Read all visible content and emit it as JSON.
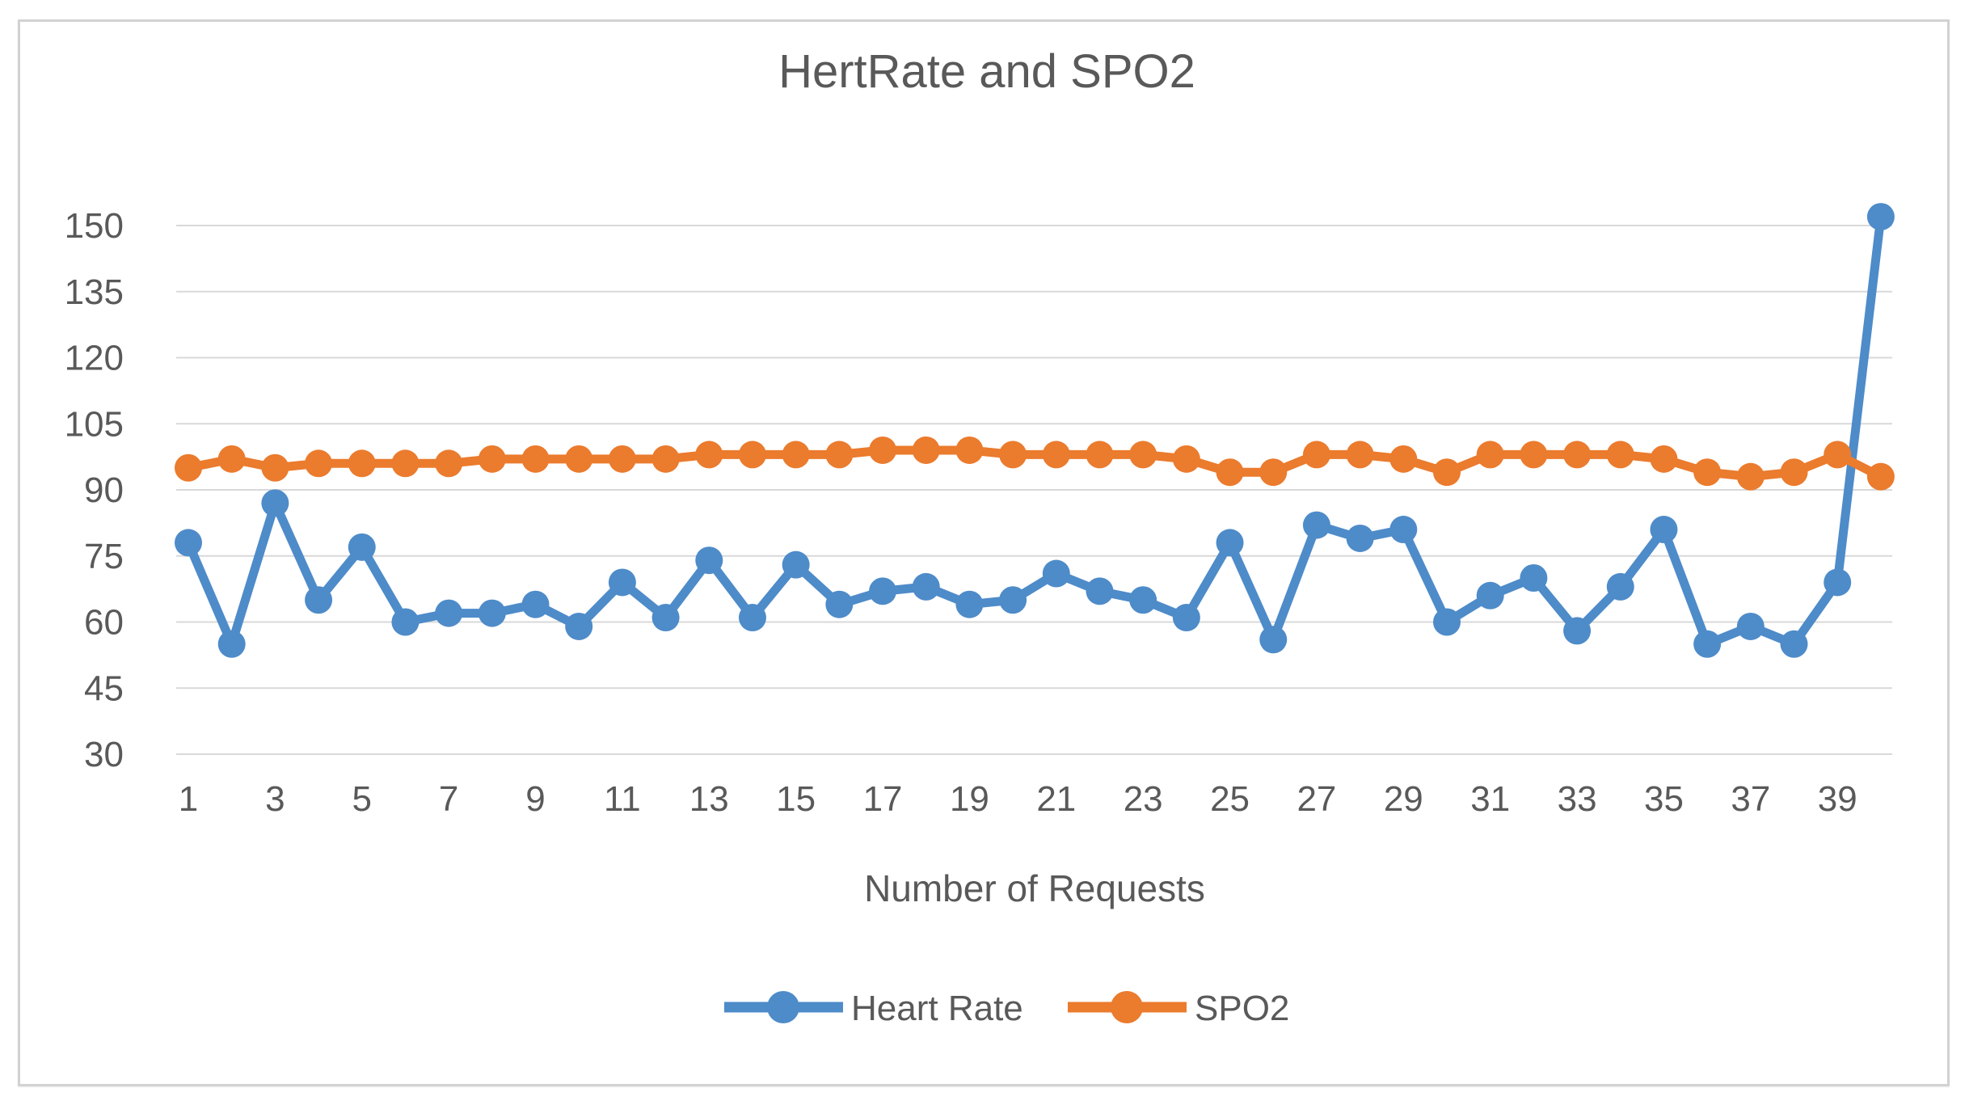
{
  "window": {
    "title": "HertRate and SPO2"
  },
  "colors": {
    "heart_rate": "#4E8BC9",
    "spo2": "#EB7B2D",
    "grid": "#D9D9D9",
    "text": "#595959",
    "frame_border": "#D2D2D2",
    "background": "#FFFFFF"
  },
  "legend": {
    "items": [
      {
        "label": "Heart Rate",
        "color": "#4E8BC9"
      },
      {
        "label": "SPO2",
        "color": "#EB7B2D"
      }
    ]
  },
  "chart_data": {
    "type": "line",
    "title": "HertRate and SPO2",
    "xlabel": "Number of Requests",
    "ylabel": "",
    "grid": true,
    "legend_position": "bottom",
    "ylim": [
      30,
      150
    ],
    "y_ticks": [
      30,
      45,
      60,
      75,
      90,
      105,
      120,
      135,
      150
    ],
    "x": [
      1,
      2,
      3,
      4,
      5,
      6,
      7,
      8,
      9,
      10,
      11,
      12,
      13,
      14,
      15,
      16,
      17,
      18,
      19,
      20,
      21,
      22,
      23,
      24,
      25,
      26,
      27,
      28,
      29,
      30,
      31,
      32,
      33,
      34,
      35,
      36,
      37,
      38,
      39,
      40
    ],
    "x_tick_labels": [
      1,
      3,
      5,
      7,
      9,
      11,
      13,
      15,
      17,
      19,
      21,
      23,
      25,
      27,
      29,
      31,
      33,
      35,
      37,
      39
    ],
    "series": [
      {
        "name": "Heart Rate",
        "color": "#4E8BC9",
        "values": [
          78,
          55,
          87,
          65,
          77,
          60,
          62,
          62,
          64,
          59,
          69,
          61,
          74,
          61,
          73,
          64,
          67,
          68,
          64,
          65,
          71,
          67,
          65,
          61,
          78,
          56,
          82,
          79,
          81,
          60,
          66,
          70,
          58,
          68,
          81,
          55,
          59,
          55,
          69,
          152
        ]
      },
      {
        "name": "SPO2",
        "color": "#EB7B2D",
        "values": [
          95,
          97,
          95,
          96,
          96,
          96,
          96,
          97,
          97,
          97,
          97,
          97,
          98,
          98,
          98,
          98,
          99,
          99,
          99,
          98,
          98,
          98,
          98,
          97,
          94,
          94,
          98,
          98,
          97,
          94,
          98,
          98,
          98,
          98,
          97,
          94,
          93,
          94,
          98,
          93
        ]
      }
    ]
  }
}
